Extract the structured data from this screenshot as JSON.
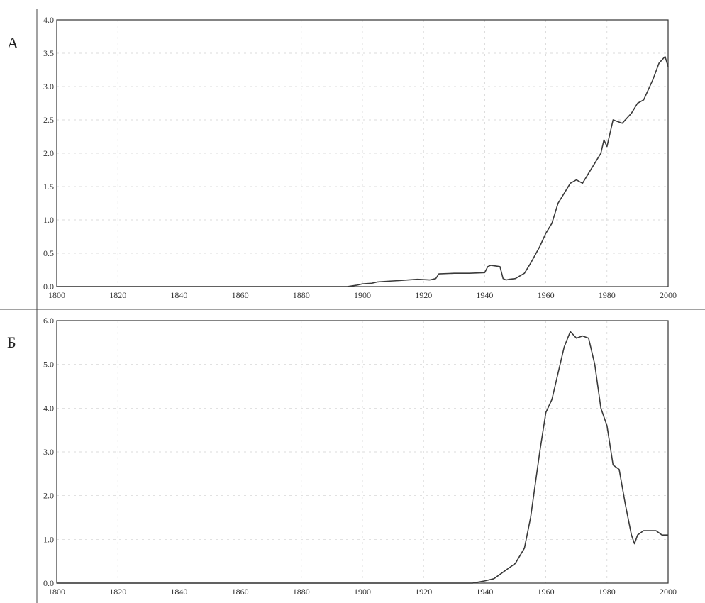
{
  "chart_data": [
    {
      "panel_label": "А",
      "type": "line",
      "xlim": [
        1800,
        2000
      ],
      "ylim": [
        0,
        4
      ],
      "x_ticks": [
        "1800",
        "1820",
        "1840",
        "1860",
        "1880",
        "1900",
        "1920",
        "1940",
        "1960",
        "1980",
        "2000"
      ],
      "y_ticks": [
        "0.0",
        "0.5",
        "1.0",
        "1.5",
        "2.0",
        "2.5",
        "3.0",
        "3.5",
        "4.0"
      ],
      "grid": true,
      "series": [
        {
          "x": [
            1800,
            1895,
            1898,
            1900,
            1903,
            1905,
            1908,
            1912,
            1915,
            1918,
            1922,
            1924,
            1925,
            1930,
            1935,
            1940,
            1941,
            1942,
            1945,
            1946,
            1947,
            1948,
            1950,
            1953,
            1955,
            1958,
            1960,
            1962,
            1964,
            1966,
            1968,
            1970,
            1972,
            1974,
            1976,
            1978,
            1979,
            1980,
            1982,
            1985,
            1988,
            1990,
            1992,
            1995,
            1997,
            1999,
            2000
          ],
          "y": [
            0,
            0,
            0.02,
            0.04,
            0.05,
            0.07,
            0.08,
            0.09,
            0.1,
            0.11,
            0.1,
            0.12,
            0.19,
            0.2,
            0.2,
            0.21,
            0.3,
            0.32,
            0.3,
            0.12,
            0.1,
            0.11,
            0.12,
            0.2,
            0.35,
            0.6,
            0.8,
            0.95,
            1.25,
            1.4,
            1.55,
            1.6,
            1.55,
            1.7,
            1.85,
            2.0,
            2.2,
            2.1,
            2.5,
            2.45,
            2.6,
            2.75,
            2.8,
            3.1,
            3.35,
            3.45,
            3.3
          ],
          "color": "#3a3a3a"
        }
      ]
    },
    {
      "panel_label": "Б",
      "type": "line",
      "xlim": [
        1800,
        2000
      ],
      "ylim": [
        0,
        6
      ],
      "x_ticks": [
        "1800",
        "1820",
        "1840",
        "1860",
        "1880",
        "1900",
        "1920",
        "1940",
        "1960",
        "1980",
        "2000"
      ],
      "y_ticks": [
        "0.0",
        "1.0",
        "2.0",
        "3.0",
        "4.0",
        "5.0",
        "6.0"
      ],
      "grid": true,
      "series": [
        {
          "x": [
            1800,
            1936,
            1940,
            1943,
            1945,
            1948,
            1950,
            1953,
            1955,
            1957,
            1958,
            1960,
            1962,
            1964,
            1966,
            1968,
            1970,
            1972,
            1974,
            1976,
            1978,
            1980,
            1982,
            1984,
            1986,
            1988,
            1989,
            1990,
            1992,
            1994,
            1996,
            1998,
            2000
          ],
          "y": [
            0,
            0,
            0.05,
            0.1,
            0.2,
            0.35,
            0.45,
            0.8,
            1.5,
            2.5,
            3.0,
            3.9,
            4.2,
            4.8,
            5.4,
            5.75,
            5.6,
            5.65,
            5.6,
            5.0,
            4.0,
            3.6,
            2.7,
            2.6,
            1.8,
            1.1,
            0.9,
            1.1,
            1.2,
            1.2,
            1.2,
            1.1,
            1.1
          ],
          "color": "#3a3a3a"
        }
      ]
    }
  ]
}
